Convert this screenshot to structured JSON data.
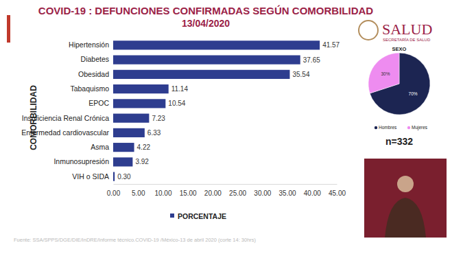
{
  "header": {
    "logo": "SALUD",
    "logo_subtitle": "SECRETARÍA DE SALUD"
  },
  "footer": {
    "source": "Fuente: SSA/SPPS/DGE/DIE/InDRE/Informe técnico.COVID-19 /México-13 de abril 2020 (corte 14: 30hrs)"
  },
  "chart_data": [
    {
      "type": "bar",
      "title": "COVID-19 : DEFUNCIONES CONFIRMADAS SEGÚN COMORBILIDAD",
      "subtitle": "13/04/2020",
      "y_label": "COMORBILIDAD",
      "orientation": "horizontal",
      "categories": [
        "Hipertensión",
        "Diabetes",
        "Obesidad",
        "Tabaquismo",
        "EPOC",
        "Insuficiencia Renal Crónica",
        "Enfermedad cardiovascular",
        "Asma",
        "Inmunosupresión",
        "VIH o SIDA"
      ],
      "series": [
        {
          "name": "PORCENTAJE",
          "color": "#2e3d8f",
          "values": [
            41.57,
            37.65,
            35.54,
            11.14,
            10.54,
            7.23,
            6.33,
            4.22,
            3.92,
            0.3
          ],
          "value_labels": [
            "41.57",
            "37.65",
            "35.54",
            "11.14",
            "10.54",
            "7.23",
            "6.33",
            "4.22",
            "3.92",
            "0.30"
          ]
        }
      ],
      "xlim": [
        0,
        45
      ],
      "xticks": [
        {
          "value": 0,
          "label": "0.00"
        },
        {
          "value": 5,
          "label": "5.00"
        },
        {
          "value": 10,
          "label": "10.00"
        },
        {
          "value": 15,
          "label": "15.00"
        },
        {
          "value": 20,
          "label": "20.00"
        },
        {
          "value": 25,
          "label": "25.00"
        },
        {
          "value": 30,
          "label": "30.00"
        },
        {
          "value": 35,
          "label": "35.00"
        },
        {
          "value": 40,
          "label": "40.00"
        },
        {
          "value": 45,
          "label": "45.00"
        }
      ],
      "grid": false,
      "legend": "bottom",
      "data_labels": true
    },
    {
      "type": "pie",
      "title": "SEXO",
      "categories": [
        "Hombres",
        "Mujeres"
      ],
      "values": [
        70,
        30
      ],
      "value_labels": [
        "70%",
        "30%"
      ],
      "colors": [
        "#1c2552",
        "#ee8cf0"
      ],
      "legend": "bottom",
      "data_labels": true,
      "annotations": [
        "n=332"
      ]
    }
  ]
}
